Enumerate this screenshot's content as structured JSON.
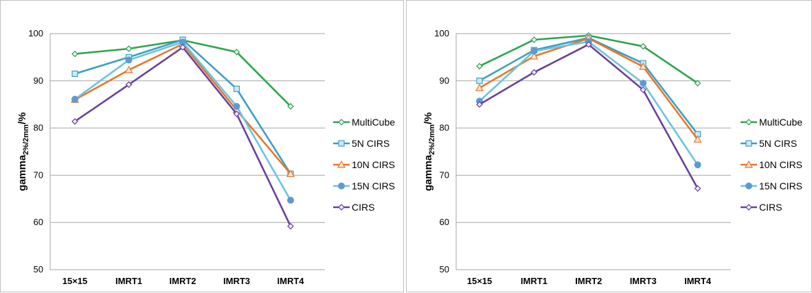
{
  "chart_data": [
    {
      "type": "line",
      "ylabel": "gamma",
      "ylabel_sub": "2%/2mm",
      "ylabel_suffix": "/%",
      "categories": [
        "15×15",
        "IMRT1",
        "IMRT2",
        "IMRT3",
        "IMRT4"
      ],
      "ylim": [
        50,
        100
      ],
      "yticks": [
        "50",
        "60",
        "70",
        "80",
        "90",
        "100"
      ],
      "grid": true,
      "legend_position": "right",
      "series": [
        {
          "name": "MultiCube",
          "values": [
            95.7,
            96.8,
            98.6,
            96.1,
            84.6
          ],
          "color": "#2fa34f",
          "marker": "diamond"
        },
        {
          "name": "5N CIRS",
          "values": [
            91.5,
            95.0,
            98.7,
            88.3,
            70.3
          ],
          "color": "#3b9fc4",
          "marker": "square"
        },
        {
          "name": "10N CIRS",
          "values": [
            86.0,
            92.3,
            97.8,
            83.8,
            70.3
          ],
          "color": "#e8762b",
          "marker": "triangle"
        },
        {
          "name": "15N CIRS",
          "values": [
            86.1,
            94.4,
            98.2,
            84.6,
            64.7
          ],
          "color": "#6cc3de",
          "marker": "circle"
        },
        {
          "name": "CIRS",
          "values": [
            81.4,
            89.2,
            97.1,
            83.0,
            59.2
          ],
          "color": "#6a3f9c",
          "marker": "diamond"
        }
      ]
    },
    {
      "type": "line",
      "ylabel": "gamma",
      "ylabel_sub": "2%/2mm",
      "ylabel_suffix": "/%",
      "categories": [
        "15×15",
        "IMRT1",
        "IMRT2",
        "IMRT3",
        "IMRT4"
      ],
      "ylim": [
        50,
        100
      ],
      "yticks": [
        "50",
        "60",
        "70",
        "80",
        "90",
        "100"
      ],
      "grid": true,
      "legend_position": "right",
      "series": [
        {
          "name": "MultiCube",
          "values": [
            93.1,
            98.7,
            99.6,
            97.3,
            89.5
          ],
          "color": "#2fa34f",
          "marker": "diamond"
        },
        {
          "name": "5N CIRS",
          "values": [
            90.0,
            96.5,
            99.1,
            93.7,
            78.7
          ],
          "color": "#3b9fc4",
          "marker": "square"
        },
        {
          "name": "10N CIRS",
          "values": [
            88.5,
            95.2,
            99.0,
            93.0,
            77.6
          ],
          "color": "#e8762b",
          "marker": "triangle"
        },
        {
          "name": "15N CIRS",
          "values": [
            85.7,
            96.3,
            98.3,
            89.5,
            72.2
          ],
          "color": "#6cc3de",
          "marker": "circle"
        },
        {
          "name": "CIRS",
          "values": [
            85.0,
            91.8,
            97.7,
            88.1,
            67.2
          ],
          "color": "#6a3f9c",
          "marker": "diamond"
        }
      ]
    }
  ]
}
